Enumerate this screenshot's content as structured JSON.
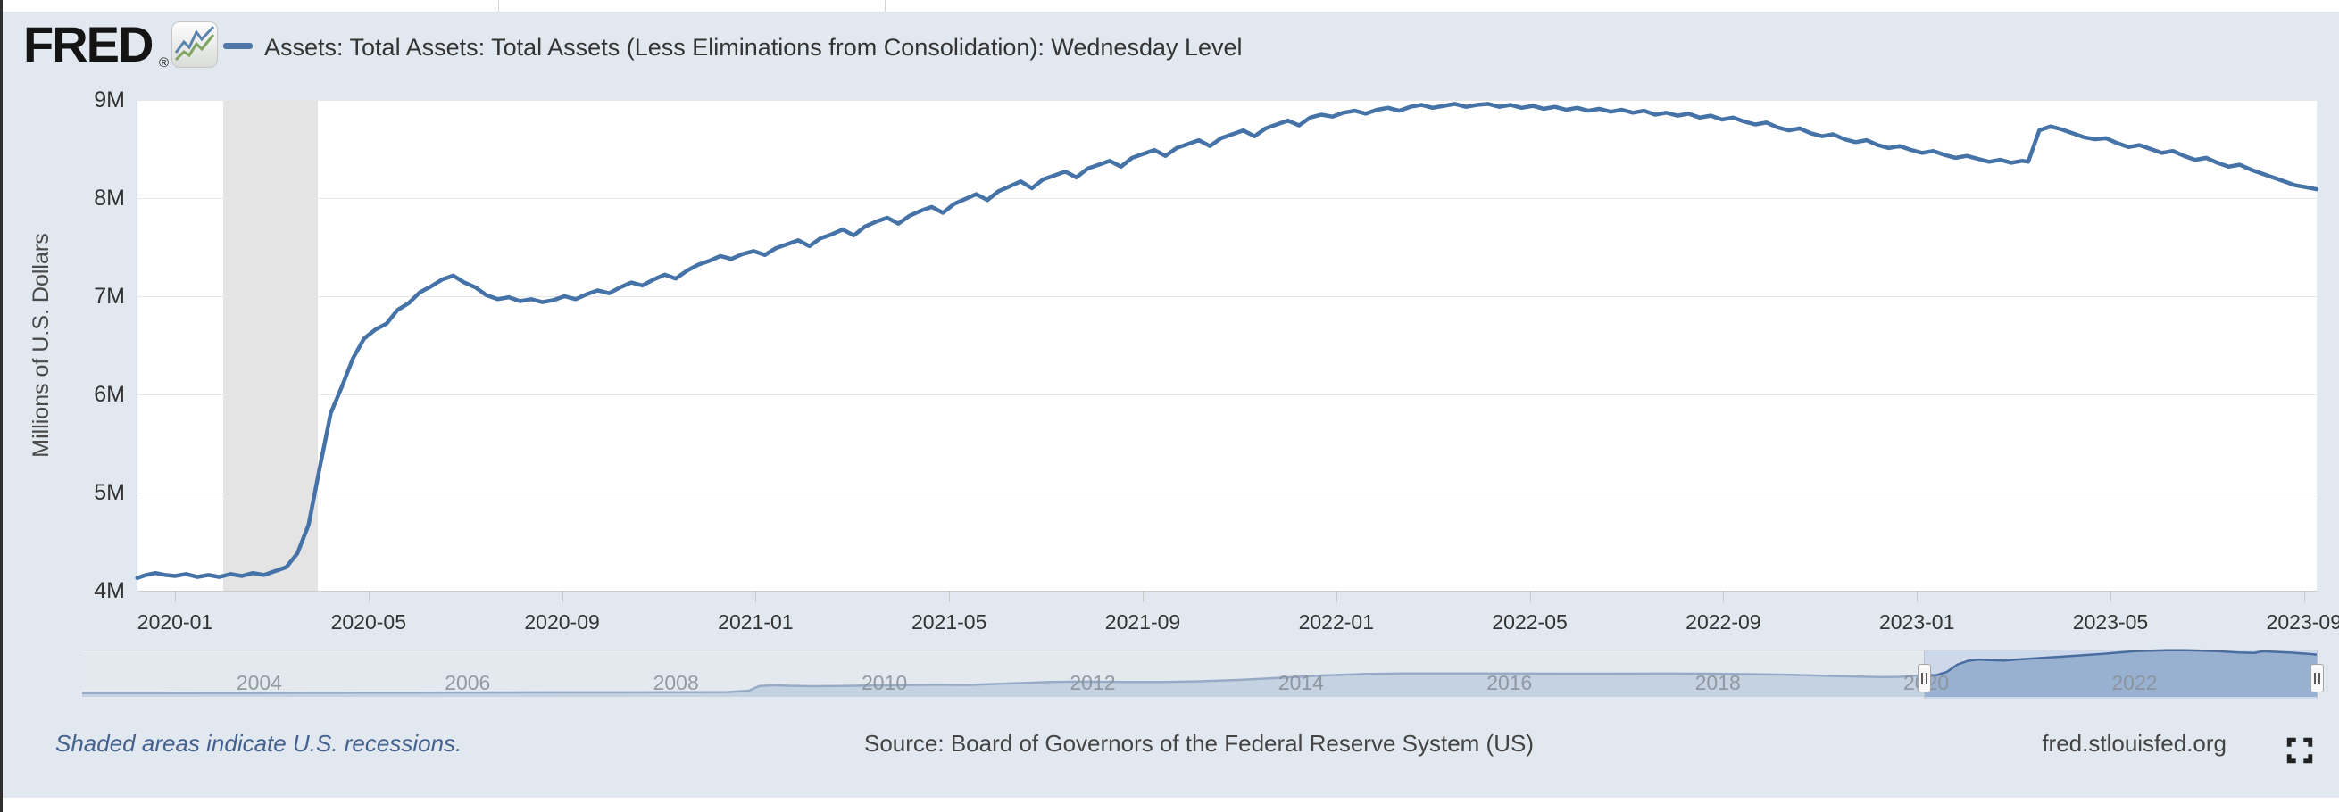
{
  "header": {
    "logo_text": "FRED",
    "registered_mark": "®",
    "logo_icon": "fred-sparkline-icon",
    "legend_series_label": "Assets: Total Assets: Total Assets (Less Eliminations from Consolidation): Wednesday Level"
  },
  "y_axis": {
    "title": "Millions of U.S. Dollars",
    "tick_labels": [
      "9M",
      "8M",
      "7M",
      "6M",
      "5M",
      "4M"
    ]
  },
  "x_axis": {
    "tick_labels": [
      "2020-01",
      "2020-05",
      "2020-09",
      "2021-01",
      "2021-05",
      "2021-09",
      "2022-01",
      "2022-05",
      "2022-09",
      "2023-01",
      "2023-05",
      "2023-09"
    ]
  },
  "navigator": {
    "year_labels": [
      "2004",
      "2006",
      "2008",
      "2010",
      "2012",
      "2014",
      "2016",
      "2018",
      "2020",
      "2022"
    ],
    "left_handle_icon": "drag-handle-icon",
    "right_handle_icon": "drag-handle-icon"
  },
  "footer": {
    "recession_note": "Shaded areas indicate U.S. recessions.",
    "source_text": "Source: Board of Governors of the Federal Reserve System (US)",
    "site_link": "fred.stlouisfed.org",
    "fullscreen_icon": "fullscreen-icon"
  },
  "colors": {
    "series_line": "#4572a7",
    "widget_background": "#e2e8ef",
    "recession_band": "#e4e4e4",
    "navigator_area_fill": "rgba(69,114,167,0.38)",
    "navigator_selection_background": "#cdd9eb"
  },
  "chart_data": [
    {
      "type": "line",
      "title": "Assets: Total Assets: Total Assets (Less Eliminations from Consolidation): Wednesday Level",
      "ylabel": "Millions of U.S. Dollars",
      "ylim": [
        4,
        9
      ],
      "y_tick_labels": [
        "4M",
        "5M",
        "6M",
        "7M",
        "8M",
        "9M"
      ],
      "x_unit": "months since 2020-01 (weekly Wednesday observations, values in millions of U.S. dollars)",
      "xlim": [
        -0.78,
        44.26
      ],
      "x_tick_labels": [
        "2020-01",
        "2020-05",
        "2020-09",
        "2021-01",
        "2021-05",
        "2021-09",
        "2022-01",
        "2022-05",
        "2022-09",
        "2023-01",
        "2023-05",
        "2023-09"
      ],
      "grid": "horizontal",
      "legend_position": "top",
      "recession_band_x": [
        1.0,
        2.95
      ],
      "points": [
        [
          -0.78,
          4.13
        ],
        [
          -0.6,
          4.16
        ],
        [
          -0.4,
          4.18
        ],
        [
          -0.2,
          4.16
        ],
        [
          0,
          4.15
        ],
        [
          0.23,
          4.17
        ],
        [
          0.46,
          4.14
        ],
        [
          0.69,
          4.16
        ],
        [
          0.92,
          4.14
        ],
        [
          1.15,
          4.17
        ],
        [
          1.38,
          4.15
        ],
        [
          1.61,
          4.18
        ],
        [
          1.84,
          4.16
        ],
        [
          2.07,
          4.2
        ],
        [
          2.3,
          4.24
        ],
        [
          2.53,
          4.38
        ],
        [
          2.76,
          4.67
        ],
        [
          2.99,
          5.25
        ],
        [
          3.22,
          5.81
        ],
        [
          3.45,
          6.08
        ],
        [
          3.68,
          6.37
        ],
        [
          3.91,
          6.57
        ],
        [
          4.14,
          6.66
        ],
        [
          4.37,
          6.72
        ],
        [
          4.6,
          6.86
        ],
        [
          4.83,
          6.93
        ],
        [
          5.06,
          7.04
        ],
        [
          5.29,
          7.1
        ],
        [
          5.52,
          7.17
        ],
        [
          5.75,
          7.21
        ],
        [
          5.98,
          7.14
        ],
        [
          6.21,
          7.09
        ],
        [
          6.44,
          7.01
        ],
        [
          6.67,
          6.97
        ],
        [
          6.9,
          6.99
        ],
        [
          7.13,
          6.95
        ],
        [
          7.36,
          6.97
        ],
        [
          7.59,
          6.94
        ],
        [
          7.82,
          6.96
        ],
        [
          8.05,
          7.0
        ],
        [
          8.28,
          6.97
        ],
        [
          8.51,
          7.02
        ],
        [
          8.74,
          7.06
        ],
        [
          8.97,
          7.03
        ],
        [
          9.2,
          7.09
        ],
        [
          9.43,
          7.14
        ],
        [
          9.66,
          7.11
        ],
        [
          9.89,
          7.17
        ],
        [
          10.12,
          7.22
        ],
        [
          10.35,
          7.18
        ],
        [
          10.58,
          7.26
        ],
        [
          10.81,
          7.32
        ],
        [
          11.04,
          7.36
        ],
        [
          11.27,
          7.41
        ],
        [
          11.5,
          7.38
        ],
        [
          11.73,
          7.43
        ],
        [
          11.96,
          7.46
        ],
        [
          12.19,
          7.42
        ],
        [
          12.42,
          7.49
        ],
        [
          12.65,
          7.53
        ],
        [
          12.88,
          7.57
        ],
        [
          13.11,
          7.51
        ],
        [
          13.34,
          7.59
        ],
        [
          13.57,
          7.63
        ],
        [
          13.8,
          7.68
        ],
        [
          14.03,
          7.62
        ],
        [
          14.26,
          7.71
        ],
        [
          14.49,
          7.76
        ],
        [
          14.72,
          7.8
        ],
        [
          14.95,
          7.74
        ],
        [
          15.18,
          7.82
        ],
        [
          15.41,
          7.87
        ],
        [
          15.64,
          7.91
        ],
        [
          15.87,
          7.85
        ],
        [
          16.1,
          7.94
        ],
        [
          16.33,
          7.99
        ],
        [
          16.56,
          8.04
        ],
        [
          16.79,
          7.98
        ],
        [
          17.02,
          8.07
        ],
        [
          17.25,
          8.12
        ],
        [
          17.48,
          8.17
        ],
        [
          17.71,
          8.1
        ],
        [
          17.94,
          8.19
        ],
        [
          18.17,
          8.23
        ],
        [
          18.4,
          8.27
        ],
        [
          18.63,
          8.21
        ],
        [
          18.86,
          8.3
        ],
        [
          19.09,
          8.34
        ],
        [
          19.32,
          8.38
        ],
        [
          19.55,
          8.32
        ],
        [
          19.78,
          8.41
        ],
        [
          20.01,
          8.45
        ],
        [
          20.24,
          8.49
        ],
        [
          20.47,
          8.43
        ],
        [
          20.7,
          8.51
        ],
        [
          20.93,
          8.55
        ],
        [
          21.16,
          8.59
        ],
        [
          21.39,
          8.53
        ],
        [
          21.62,
          8.61
        ],
        [
          21.85,
          8.65
        ],
        [
          22.08,
          8.69
        ],
        [
          22.31,
          8.63
        ],
        [
          22.54,
          8.71
        ],
        [
          22.77,
          8.75
        ],
        [
          23,
          8.79
        ],
        [
          23.23,
          8.74
        ],
        [
          23.46,
          8.82
        ],
        [
          23.69,
          8.85
        ],
        [
          23.92,
          8.83
        ],
        [
          24.15,
          8.87
        ],
        [
          24.38,
          8.89
        ],
        [
          24.61,
          8.86
        ],
        [
          24.84,
          8.9
        ],
        [
          25.07,
          8.92
        ],
        [
          25.3,
          8.89
        ],
        [
          25.53,
          8.93
        ],
        [
          25.76,
          8.95
        ],
        [
          25.99,
          8.92
        ],
        [
          26.22,
          8.94
        ],
        [
          26.45,
          8.96
        ],
        [
          26.68,
          8.93
        ],
        [
          26.91,
          8.95
        ],
        [
          27.14,
          8.96
        ],
        [
          27.37,
          8.93
        ],
        [
          27.6,
          8.95
        ],
        [
          27.83,
          8.92
        ],
        [
          28.06,
          8.94
        ],
        [
          28.29,
          8.91
        ],
        [
          28.52,
          8.93
        ],
        [
          28.75,
          8.9
        ],
        [
          28.98,
          8.92
        ],
        [
          29.21,
          8.89
        ],
        [
          29.44,
          8.91
        ],
        [
          29.67,
          8.88
        ],
        [
          29.9,
          8.9
        ],
        [
          30.13,
          8.87
        ],
        [
          30.36,
          8.89
        ],
        [
          30.59,
          8.85
        ],
        [
          30.82,
          8.87
        ],
        [
          31.05,
          8.84
        ],
        [
          31.28,
          8.86
        ],
        [
          31.51,
          8.82
        ],
        [
          31.74,
          8.84
        ],
        [
          31.97,
          8.8
        ],
        [
          32.2,
          8.82
        ],
        [
          32.43,
          8.78
        ],
        [
          32.66,
          8.75
        ],
        [
          32.89,
          8.77
        ],
        [
          33.12,
          8.72
        ],
        [
          33.35,
          8.69
        ],
        [
          33.58,
          8.71
        ],
        [
          33.81,
          8.66
        ],
        [
          34.04,
          8.63
        ],
        [
          34.27,
          8.65
        ],
        [
          34.5,
          8.6
        ],
        [
          34.73,
          8.57
        ],
        [
          34.96,
          8.59
        ],
        [
          35.19,
          8.54
        ],
        [
          35.42,
          8.51
        ],
        [
          35.65,
          8.53
        ],
        [
          35.88,
          8.49
        ],
        [
          36.11,
          8.46
        ],
        [
          36.34,
          8.48
        ],
        [
          36.57,
          8.44
        ],
        [
          36.8,
          8.41
        ],
        [
          37.03,
          8.43
        ],
        [
          37.26,
          8.4
        ],
        [
          37.49,
          8.37
        ],
        [
          37.72,
          8.39
        ],
        [
          37.95,
          8.36
        ],
        [
          38.18,
          8.38
        ],
        [
          38.3,
          8.37
        ],
        [
          38.53,
          8.69
        ],
        [
          38.76,
          8.73
        ],
        [
          38.99,
          8.7
        ],
        [
          39.22,
          8.66
        ],
        [
          39.45,
          8.62
        ],
        [
          39.68,
          8.6
        ],
        [
          39.91,
          8.61
        ],
        [
          40.14,
          8.56
        ],
        [
          40.37,
          8.52
        ],
        [
          40.6,
          8.54
        ],
        [
          40.83,
          8.5
        ],
        [
          41.06,
          8.46
        ],
        [
          41.29,
          8.48
        ],
        [
          41.52,
          8.43
        ],
        [
          41.75,
          8.39
        ],
        [
          41.98,
          8.41
        ],
        [
          42.21,
          8.36
        ],
        [
          42.44,
          8.32
        ],
        [
          42.67,
          8.34
        ],
        [
          42.9,
          8.29
        ],
        [
          43.13,
          8.25
        ],
        [
          43.36,
          8.21
        ],
        [
          43.59,
          8.17
        ],
        [
          43.82,
          8.13
        ],
        [
          44.05,
          8.11
        ],
        [
          44.26,
          8.09
        ]
      ]
    },
    {
      "type": "area",
      "name": "navigator (full history preview)",
      "x_unit": "calendar year",
      "xlim": [
        2002.3,
        2023.75
      ],
      "selected_range": [
        2019.98,
        2023.75
      ],
      "year_tick_labels": [
        "2004",
        "2006",
        "2008",
        "2010",
        "2012",
        "2014",
        "2016",
        "2018",
        "2020",
        "2022"
      ],
      "points": [
        [
          2002.3,
          0.73
        ],
        [
          2003.0,
          0.73
        ],
        [
          2003.5,
          0.75
        ],
        [
          2004.0,
          0.76
        ],
        [
          2004.5,
          0.78
        ],
        [
          2005.0,
          0.8
        ],
        [
          2005.5,
          0.81
        ],
        [
          2006.0,
          0.83
        ],
        [
          2006.5,
          0.85
        ],
        [
          2007.0,
          0.87
        ],
        [
          2007.5,
          0.88
        ],
        [
          2008.0,
          0.9
        ],
        [
          2008.5,
          0.92
        ],
        [
          2008.7,
          1.2
        ],
        [
          2008.8,
          2.1
        ],
        [
          2008.95,
          2.24
        ],
        [
          2009.1,
          2.12
        ],
        [
          2009.3,
          2.05
        ],
        [
          2009.6,
          2.1
        ],
        [
          2009.9,
          2.2
        ],
        [
          2010.2,
          2.28
        ],
        [
          2010.5,
          2.33
        ],
        [
          2010.8,
          2.29
        ],
        [
          2011.0,
          2.42
        ],
        [
          2011.3,
          2.65
        ],
        [
          2011.6,
          2.86
        ],
        [
          2011.9,
          2.92
        ],
        [
          2012.3,
          2.88
        ],
        [
          2012.7,
          2.85
        ],
        [
          2013.0,
          2.97
        ],
        [
          2013.4,
          3.25
        ],
        [
          2013.8,
          3.65
        ],
        [
          2014.2,
          4.1
        ],
        [
          2014.6,
          4.38
        ],
        [
          2015.0,
          4.5
        ],
        [
          2015.5,
          4.49
        ],
        [
          2016.0,
          4.46
        ],
        [
          2016.5,
          4.45
        ],
        [
          2017.0,
          4.45
        ],
        [
          2017.5,
          4.46
        ],
        [
          2017.9,
          4.44
        ],
        [
          2018.3,
          4.36
        ],
        [
          2018.7,
          4.22
        ],
        [
          2019.0,
          4.06
        ],
        [
          2019.3,
          3.92
        ],
        [
          2019.6,
          3.78
        ],
        [
          2019.75,
          3.85
        ],
        [
          2019.95,
          4.12
        ],
        [
          2020.1,
          4.17
        ],
        [
          2020.2,
          4.8
        ],
        [
          2020.3,
          6.2
        ],
        [
          2020.4,
          6.9
        ],
        [
          2020.5,
          7.17
        ],
        [
          2020.6,
          7.05
        ],
        [
          2020.75,
          6.97
        ],
        [
          2020.9,
          7.2
        ],
        [
          2021.1,
          7.45
        ],
        [
          2021.4,
          7.85
        ],
        [
          2021.7,
          8.25
        ],
        [
          2022.0,
          8.76
        ],
        [
          2022.3,
          8.94
        ],
        [
          2022.5,
          8.92
        ],
        [
          2022.8,
          8.75
        ],
        [
          2023.0,
          8.52
        ],
        [
          2023.15,
          8.42
        ],
        [
          2023.22,
          8.71
        ],
        [
          2023.3,
          8.68
        ],
        [
          2023.5,
          8.48
        ],
        [
          2023.65,
          8.28
        ],
        [
          2023.75,
          8.1
        ]
      ]
    }
  ]
}
